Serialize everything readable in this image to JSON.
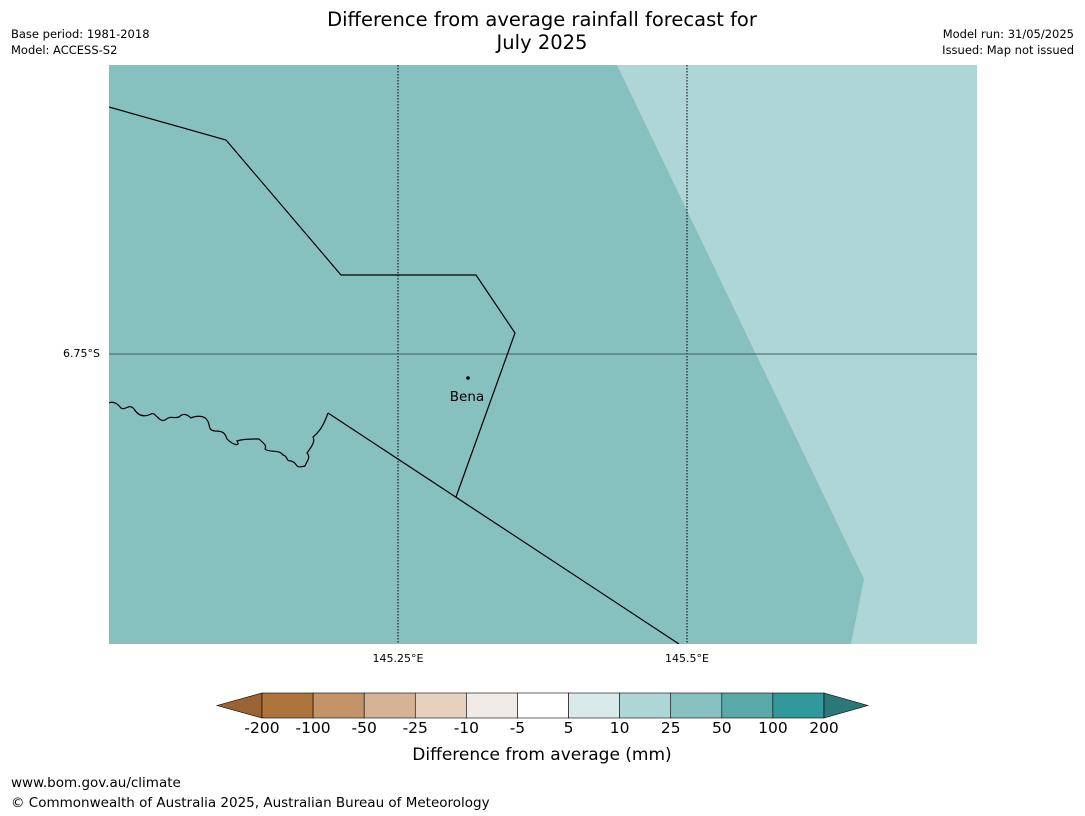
{
  "title_line1": "Difference from average rainfall forecast for",
  "title_line2": "July 2025",
  "meta_left": {
    "base_period": "Base period: 1981-2018",
    "model": "Model: ACCESS-S2"
  },
  "meta_right": {
    "model_run": "Model run: 31/05/2025",
    "issued": "Issued: Map not issued"
  },
  "map": {
    "latitude_label": "6.75°S",
    "longitude_labels": [
      "145.25°E",
      "145.5°E"
    ],
    "town": {
      "name": "Bena"
    },
    "fill_categories": {
      "main": "25 to 50",
      "east": "10 to 25"
    }
  },
  "colorbar": {
    "ticks": [
      "-200",
      "-100",
      "-50",
      "-25",
      "-10",
      "-5",
      "5",
      "10",
      "25",
      "50",
      "100",
      "200"
    ],
    "colors": {
      "below_-200": "#9a6432",
      "-200_-100": "#ad743c",
      "-100_-50": "#c39467",
      "-50_-25": "#d5b394",
      "-25_-10": "#e6d1bf",
      "-10_-5": "#f0ebe7",
      "-5_5": "#ffffff",
      "5_10": "#d8eaea",
      "10_25": "#aed6d6",
      "25_50": "#86c1c0",
      "50_100": "#5aa9a9",
      "100_200": "#31999a",
      "above_200": "#2b7878"
    },
    "label": "Difference from average (mm)"
  },
  "footer": {
    "url": "www.bom.gov.au/climate",
    "copyright": "© Commonwealth of Australia 2025, Australian Bureau of Meteorology"
  }
}
